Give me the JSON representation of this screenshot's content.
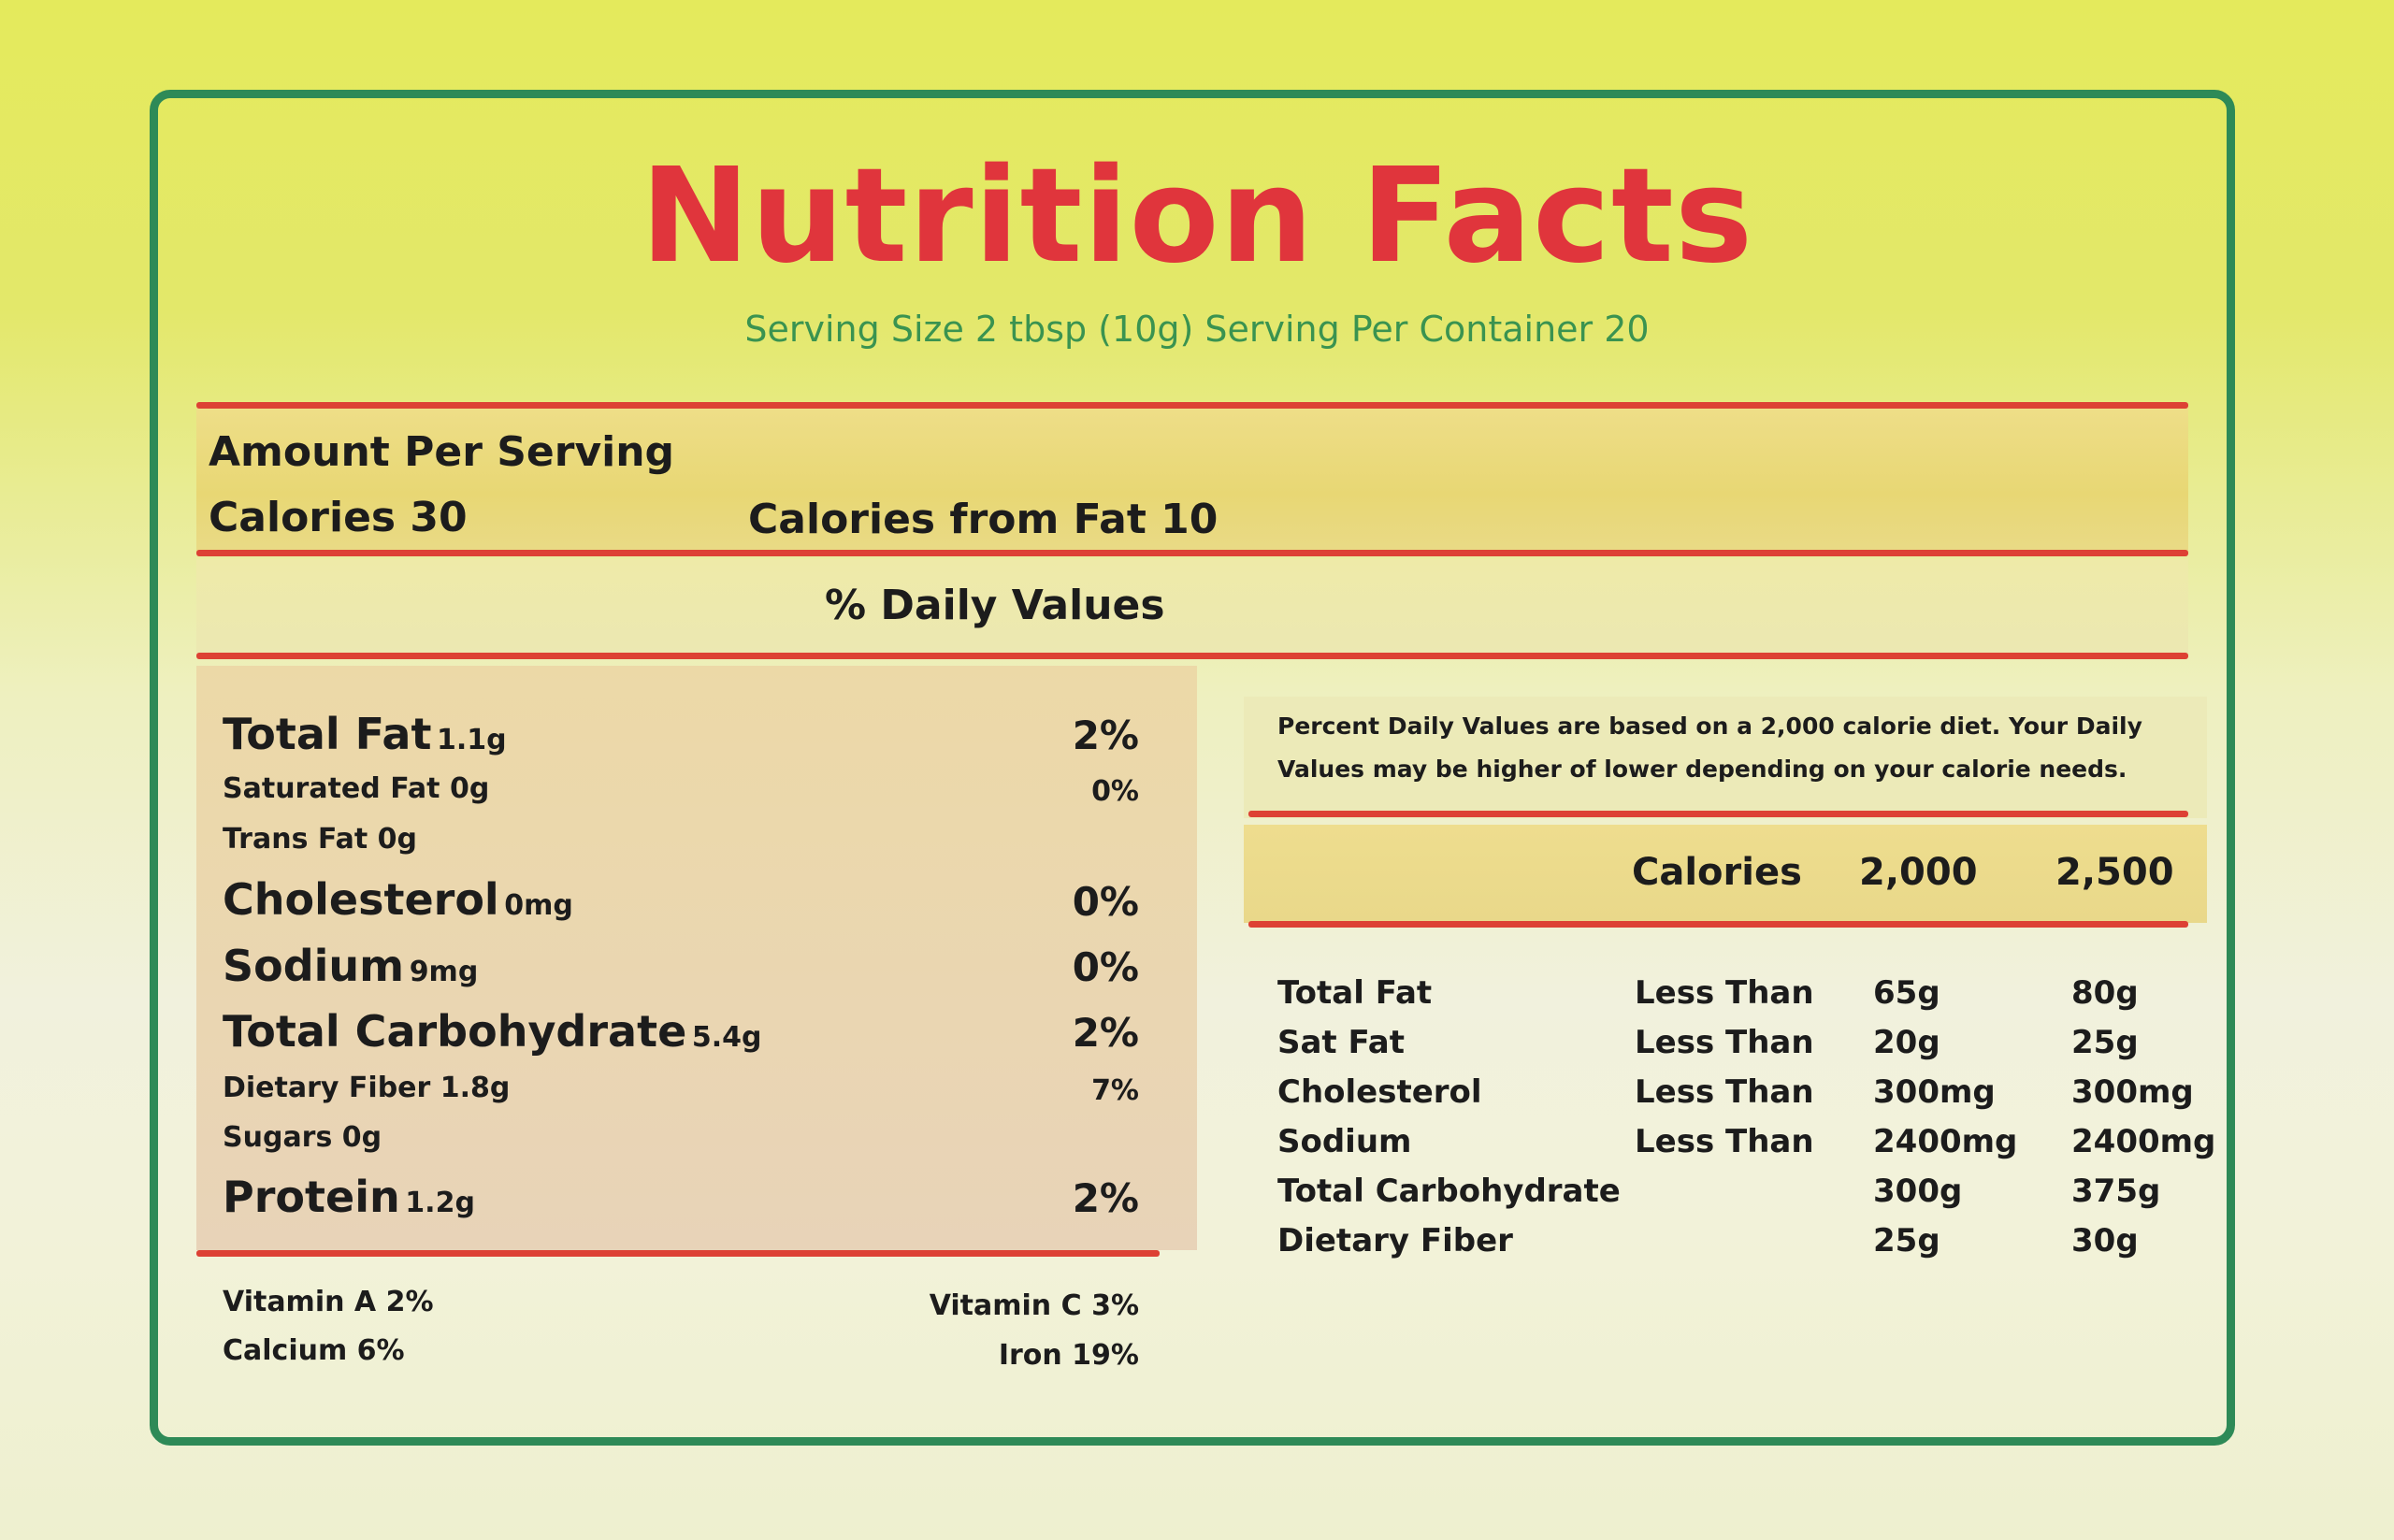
{
  "title": "Nutrition Facts",
  "serving": "Serving Size 2 tbsp (10g) Serving Per Container 20",
  "amount_per_serving": "Amount Per Serving",
  "calories": "Calories 30",
  "calories_from_fat": "Calories from Fat 10",
  "daily_values_header": "% Daily Values",
  "nutrients": [
    {
      "name": "Total Fat",
      "amount": "1.1g",
      "dv": "2%"
    },
    {
      "name": "Saturated Fat 0g",
      "dv": "0%"
    },
    {
      "name": "Trans Fat 0g"
    },
    {
      "name": "Cholesterol",
      "amount": "0mg",
      "dv": "0%"
    },
    {
      "name": "Sodium",
      "amount": "9mg",
      "dv": "0%"
    },
    {
      "name": "Total Carbohydrate",
      "amount": "5.4g",
      "dv": "2%"
    },
    {
      "name": "Dietary Fiber 1.8g",
      "dv": "7%"
    },
    {
      "name": "Sugars 0g"
    },
    {
      "name": "Protein",
      "amount": "1.2g",
      "dv": "2%"
    }
  ],
  "vitamins": {
    "vitamin_a": "Vitamin A 2%",
    "vitamin_c": "Vitamin C 3%",
    "calcium": "Calcium 6%",
    "iron": "Iron 19%"
  },
  "footnote": {
    "line1": "Percent Daily Values are based on a 2,000 calorie diet. Your Daily",
    "line2": "Values may be higher of lower depending on your calorie needs."
  },
  "reference_table": {
    "headers": [
      "Calories",
      "2,000",
      "2,500"
    ],
    "rows": [
      [
        "Total Fat",
        "Less Than",
        "65g",
        "80g"
      ],
      [
        "Sat Fat",
        "Less Than",
        "20g",
        "25g"
      ],
      [
        "Cholesterol",
        "Less Than",
        "300mg",
        "300mg"
      ],
      [
        "Sodium",
        "Less Than",
        "2400mg",
        "2400mg"
      ],
      [
        "Total Carbohydrate",
        "",
        "300g",
        "375g"
      ],
      [
        "Dietary Fiber",
        "",
        "25g",
        "30g"
      ]
    ]
  },
  "colors": {
    "title": "#e0353c",
    "subtitle": "#3a9350",
    "border": "#2e8a57",
    "rule": "#dd4134"
  }
}
